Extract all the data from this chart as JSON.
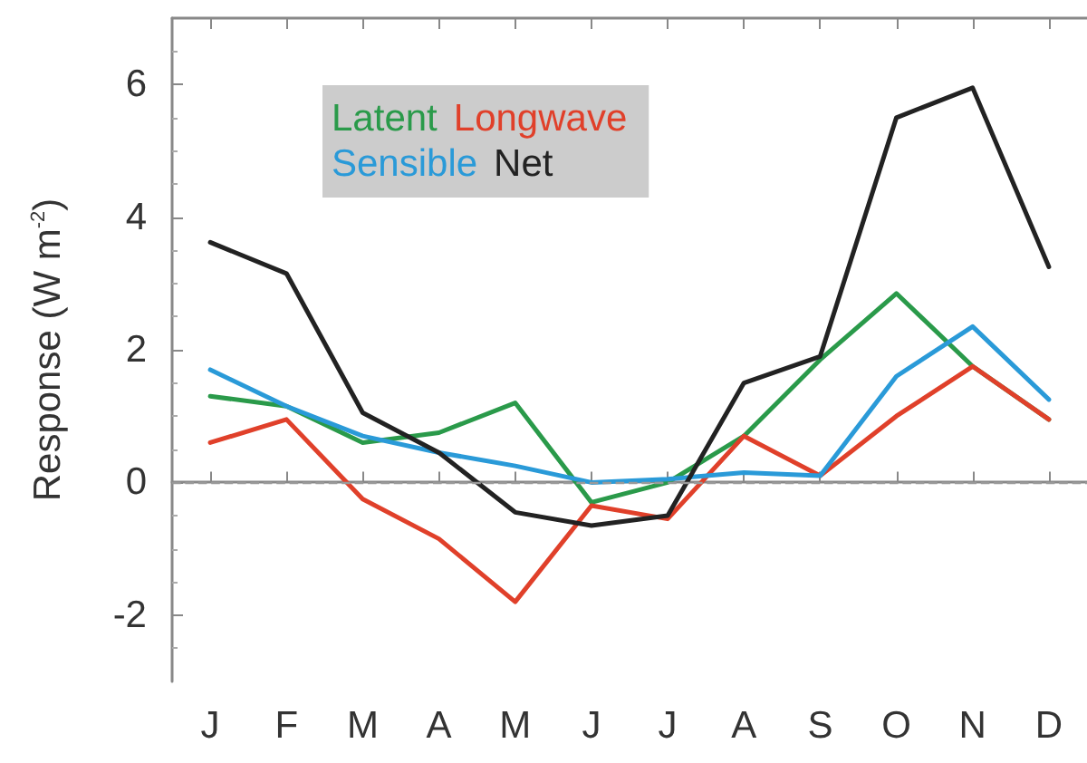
{
  "chart_data": {
    "type": "line",
    "ylabel": "Response (W m$^{-2}$)",
    "categories": [
      "J",
      "F",
      "M",
      "A",
      "M",
      "J",
      "J",
      "A",
      "S",
      "O",
      "N",
      "D"
    ],
    "ylim": [
      -3,
      7
    ],
    "yticks": [
      -2,
      0,
      2,
      4,
      6
    ],
    "series": [
      {
        "name": "Latent",
        "color": "#2a9a4a",
        "values": [
          1.3,
          1.15,
          0.6,
          0.75,
          1.2,
          -0.3,
          0.0,
          0.7,
          1.85,
          2.85,
          1.75,
          0.95
        ]
      },
      {
        "name": "Longwave",
        "color": "#e0402a",
        "values": [
          0.6,
          0.95,
          -0.25,
          -0.85,
          -1.8,
          -0.35,
          -0.55,
          0.7,
          0.1,
          1.0,
          1.75,
          0.95
        ]
      },
      {
        "name": "Sensible",
        "color": "#2a9ad8",
        "values": [
          1.7,
          1.15,
          0.7,
          0.45,
          0.25,
          0.0,
          0.05,
          0.15,
          0.1,
          1.6,
          2.35,
          1.25
        ]
      },
      {
        "name": "Net",
        "color": "#222222",
        "values": [
          3.62,
          3.15,
          1.05,
          0.45,
          -0.45,
          -0.65,
          -0.5,
          1.5,
          1.9,
          5.5,
          5.95,
          3.25
        ]
      }
    ],
    "ref_lines": [
      {
        "axis": "y",
        "value": 0,
        "label": null,
        "color": "#999999",
        "line_style": "dashed"
      }
    ],
    "legend": "top left",
    "grid": false,
    "marker": "none",
    "line_style": "solid"
  }
}
